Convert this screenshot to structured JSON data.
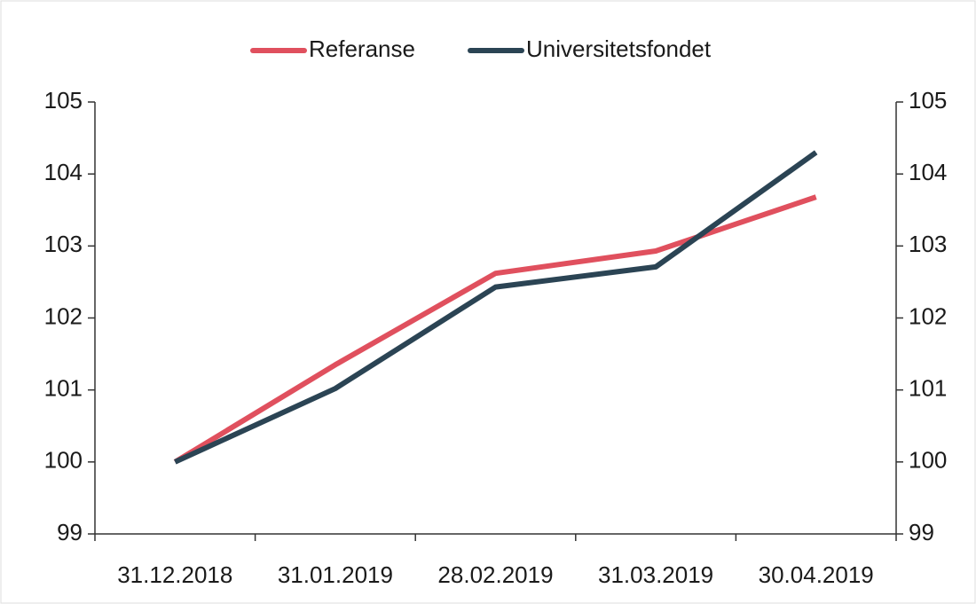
{
  "chart_data": {
    "type": "line",
    "categories": [
      "31.12.2018",
      "31.01.2019",
      "28.02.2019",
      "31.03.2019",
      "30.04.2019"
    ],
    "series": [
      {
        "name": "Referanse",
        "color": "#e0505e",
        "values": [
          100,
          101.35,
          102.62,
          102.93,
          103.68
        ]
      },
      {
        "name": "Universitetsfondet",
        "color": "#2b4454",
        "values": [
          100,
          101.02,
          102.43,
          102.71,
          104.3
        ]
      }
    ],
    "ylim": [
      99,
      105
    ],
    "yticks": [
      99,
      100,
      101,
      102,
      103,
      104,
      105
    ],
    "y2lim": [
      99,
      105
    ],
    "y2ticks": [
      99,
      100,
      101,
      102,
      103,
      104,
      105
    ],
    "legend": "top"
  }
}
